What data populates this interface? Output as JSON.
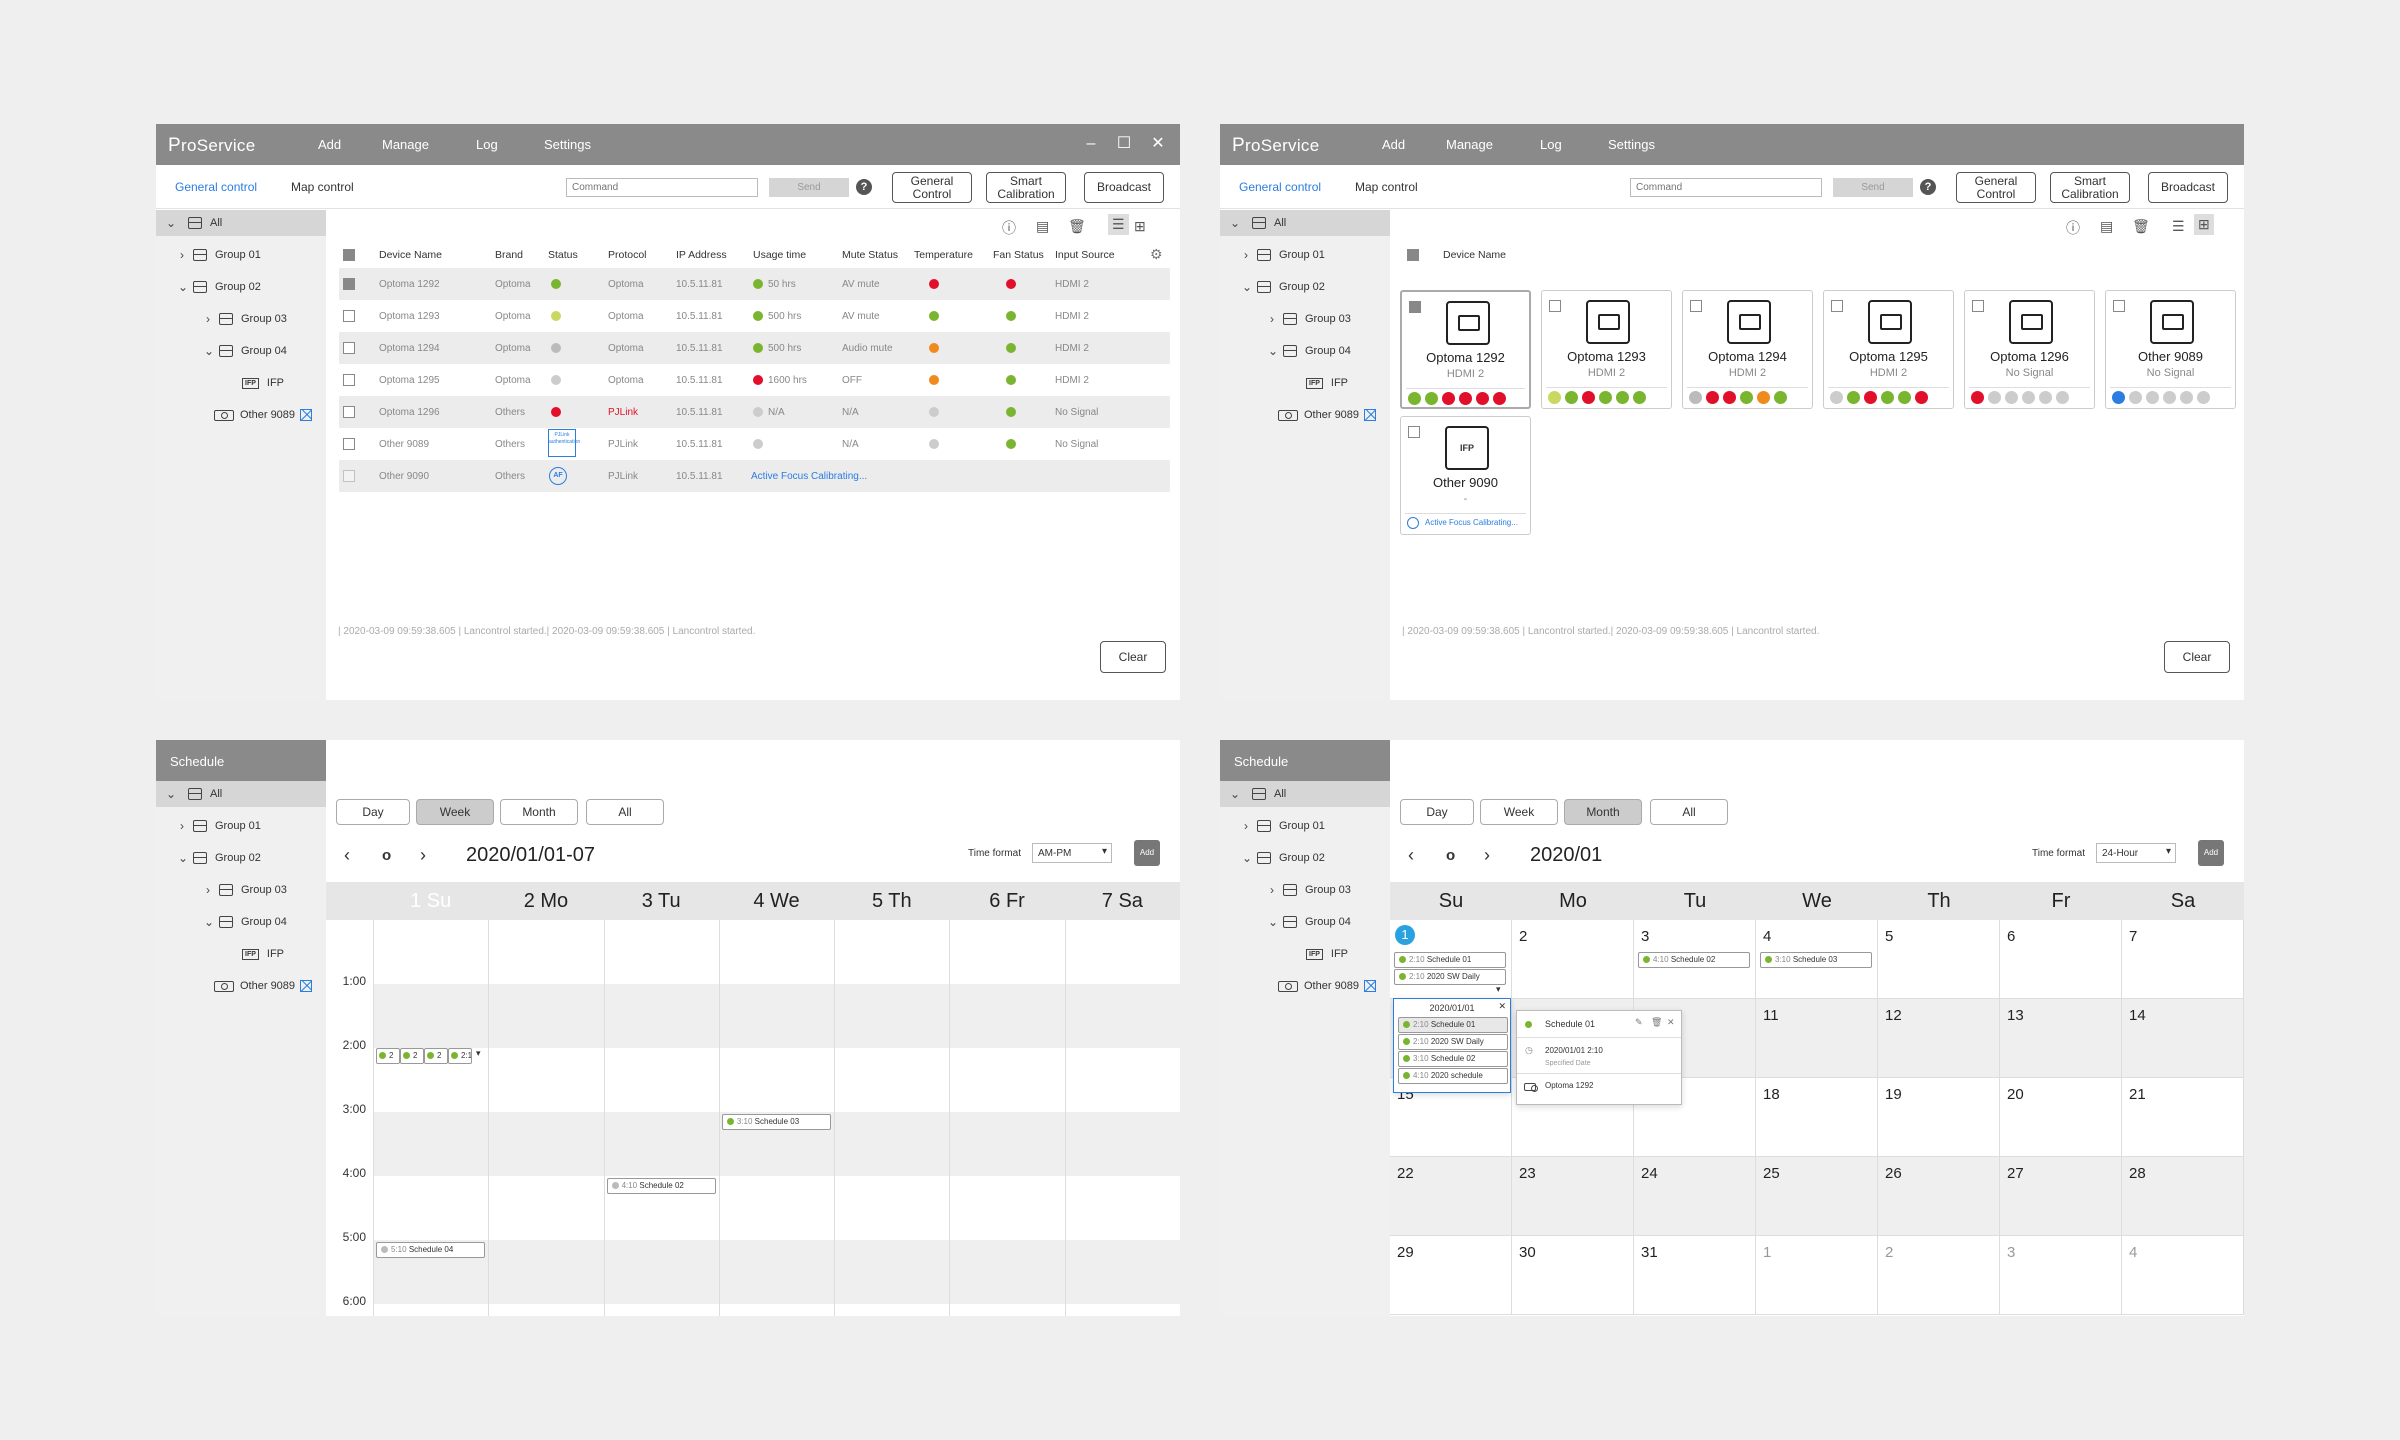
{
  "app": {
    "logo": "ProService",
    "menu": [
      "Add",
      "Manage",
      "Log",
      "Settings"
    ]
  },
  "toolbar": {
    "tab_general": "General control",
    "tab_map": "Map control",
    "command_placeholder": "Command",
    "send": "Send",
    "help": "?",
    "general_control": "General Control",
    "smart_calibration": "Smart Calibration",
    "broadcast": "Broadcast"
  },
  "tree": {
    "all": "All",
    "group01": "Group 01",
    "group02": "Group 02",
    "group03": "Group 03",
    "group04": "Group 04",
    "ifp": "IFP",
    "ifp_badge": "IFP",
    "other9089": "Other 9089"
  },
  "table": {
    "headers": [
      "Device Name",
      "Brand",
      "Status",
      "Protocol",
      "IP Address",
      "Usage time",
      "Mute Status",
      "Temperature",
      "Fan Status",
      "Input Source"
    ],
    "rows": [
      {
        "name": "Optoma 1292",
        "brand": "Optoma",
        "protocol": "Optoma",
        "ip": "10.5.11.81",
        "usage": "50 hrs",
        "mute": "AV mute",
        "input": "HDMI 2",
        "status_color": "#7ab530",
        "usage_color": "#7ab530",
        "temp_color": "#e0102a",
        "fan_color": "#e0102a"
      },
      {
        "name": "Optoma 1293",
        "brand": "Optoma",
        "protocol": "Optoma",
        "ip": "10.5.11.81",
        "usage": "500 hrs",
        "mute": "AV mute",
        "input": "HDMI 2",
        "status_color": "#c8d860",
        "usage_color": "#7ab530",
        "temp_color": "#7ab530",
        "fan_color": "#7ab530"
      },
      {
        "name": "Optoma 1294",
        "brand": "Optoma",
        "protocol": "Optoma",
        "ip": "10.5.11.81",
        "usage": "500 hrs",
        "mute": "Audio mute",
        "input": "HDMI 2",
        "status_color": "#bbbbbb",
        "usage_color": "#7ab530",
        "temp_color": "#f08a1c",
        "fan_color": "#7ab530"
      },
      {
        "name": "Optoma 1295",
        "brand": "Optoma",
        "protocol": "Optoma",
        "ip": "10.5.11.81",
        "usage": "1600 hrs",
        "mute": "OFF",
        "input": "HDMI 2",
        "status_color": "#cccccc",
        "usage_color": "#e0102a",
        "temp_color": "#f08a1c",
        "fan_color": "#7ab530"
      },
      {
        "name": "Optoma 1296",
        "brand": "Others",
        "protocol": "PJLink",
        "ip": "10.5.11.81",
        "usage": "N/A",
        "mute": "N/A",
        "input": "No Signal",
        "status_color": "#e0102a",
        "usage_color": "#cccccc",
        "temp_color": "#cccccc",
        "fan_color": "#7ab530"
      },
      {
        "name": "Other 9089",
        "brand": "Others",
        "protocol": "PJLink",
        "ip": "10.5.11.81",
        "usage": "",
        "mute": "N/A",
        "input": "No Signal",
        "status_color": "#2a7de1",
        "usage_color": "#cccccc",
        "temp_color": "#cccccc",
        "fan_color": "#7ab530"
      },
      {
        "name": "Other 9090",
        "brand": "Others",
        "protocol": "PJLink",
        "ip": "10.5.11.81",
        "usage": "",
        "mute": "",
        "input": "",
        "status_color": "#2a7de1",
        "usage_color": "",
        "temp_color": "",
        "fan_color": ""
      }
    ],
    "calibrating": "Active Focus Calibrating...",
    "af_badge": "AF",
    "pjlink_badge": "PJLink authentication"
  },
  "log": {
    "text": "| 2020-03-09 09:59:38.605 | Lancontrol started.| 2020-03-09 09:59:38.605 | Lancontrol started.",
    "clear": "Clear"
  },
  "grid": {
    "header": "Device Name",
    "cards": [
      {
        "name": "Optoma 1292",
        "sub": "HDMI 2"
      },
      {
        "name": "Optoma 1293",
        "sub": "HDMI 2"
      },
      {
        "name": "Optoma 1294",
        "sub": "HDMI 2"
      },
      {
        "name": "Optoma 1295",
        "sub": "HDMI 2"
      },
      {
        "name": "Optoma 1296",
        "sub": "No Signal"
      },
      {
        "name": "Other 9089",
        "sub": "No Signal"
      },
      {
        "name": "Other 9090",
        "sub": "-"
      }
    ],
    "calibrating": "Active Focus Calibrating..."
  },
  "schedule": {
    "title": "Schedule",
    "views": [
      "Day",
      "Week",
      "Month",
      "All"
    ],
    "today_icon": "o",
    "time_format_label": "Time format",
    "add": "Add",
    "week": {
      "period": "2020/01/01-07",
      "time_format": "AM-PM",
      "days": [
        "1 Su",
        "2 Mo",
        "3 Tu",
        "4 We",
        "5 Th",
        "6 Fr",
        "7 Sa"
      ],
      "hours": [
        "1:00",
        "2:00",
        "3:00",
        "4:00",
        "5:00",
        "6:00"
      ],
      "events": [
        {
          "time": "2:10",
          "label": "2"
        },
        {
          "time": "2:10",
          "label": "2"
        },
        {
          "time": "2:10",
          "label": "2"
        },
        {
          "time": "2:10",
          "label": "2:1"
        },
        {
          "time": "3:10",
          "label": "Schedule 03"
        },
        {
          "time": "4:10",
          "label": "Schedule 02"
        },
        {
          "time": "5:10",
          "label": "Schedule 04"
        }
      ]
    },
    "month": {
      "period": "2020/01",
      "time_format": "24-Hour",
      "days": [
        "Su",
        "Mo",
        "Tu",
        "We",
        "Th",
        "Fr",
        "Sa"
      ],
      "dates": [
        "1",
        "2",
        "3",
        "4",
        "5",
        "6",
        "7",
        "8",
        "9",
        "10",
        "11",
        "12",
        "13",
        "14",
        "15",
        "16",
        "17",
        "18",
        "19",
        "20",
        "21",
        "22",
        "23",
        "24",
        "25",
        "26",
        "27",
        "28",
        "29",
        "30",
        "31",
        "1",
        "2",
        "3",
        "4"
      ],
      "events_1": [
        {
          "time": "2:10",
          "label": "Schedule 01"
        },
        {
          "time": "2:10",
          "label": "2020 SW Daily"
        }
      ],
      "event_3": {
        "time": "4:10",
        "label": "Schedule 02"
      },
      "event_4": {
        "time": "3:10",
        "label": "Schedule 03"
      },
      "popup_date": "2020/01/01",
      "popup_list": [
        {
          "time": "2:10",
          "label": "Schedule 01"
        },
        {
          "time": "2:10",
          "label": "2020 SW Daily"
        },
        {
          "time": "3:10",
          "label": "Schedule 02"
        },
        {
          "time": "4:10",
          "label": "2020 schedule"
        }
      ],
      "detail": {
        "title": "Schedule 01",
        "datetime": "2020/01/01 2:10",
        "kind": "Specified Date",
        "device": "Optoma 1292"
      }
    }
  },
  "colors": {
    "accent": "#2a7de1",
    "green": "#7ab530",
    "red": "#e0102a",
    "orange": "#f08a1c",
    "titlebar": "#8a8a8a"
  }
}
